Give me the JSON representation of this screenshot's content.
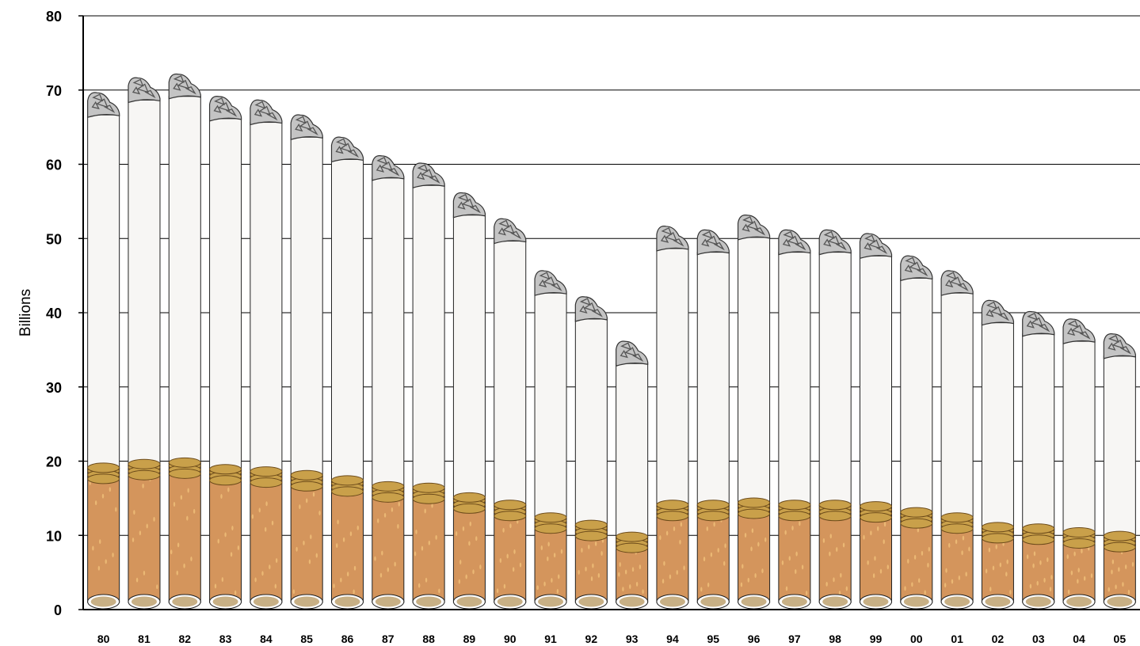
{
  "chart_data": {
    "type": "bar",
    "title": "",
    "xlabel": "",
    "ylabel": "Billions",
    "ylim": [
      0,
      80
    ],
    "yticks": [
      0,
      10,
      20,
      30,
      40,
      50,
      60,
      70,
      80
    ],
    "grid": true,
    "categories": [
      "80",
      "81",
      "82",
      "83",
      "84",
      "85",
      "86",
      "87",
      "88",
      "89",
      "90",
      "91",
      "92",
      "93",
      "94",
      "95",
      "96",
      "97",
      "98",
      "99",
      "00",
      "01",
      "02",
      "03",
      "04",
      "05"
    ],
    "values": [
      67.5,
      69.5,
      70.0,
      67.0,
      66.5,
      64.5,
      61.5,
      59.0,
      58.0,
      54.0,
      50.5,
      43.5,
      40.0,
      34.0,
      49.5,
      49.0,
      51.0,
      49.0,
      49.0,
      48.5,
      45.5,
      43.5,
      39.5,
      38.0,
      37.0,
      35.0
    ],
    "filter_values": [
      19.0,
      19.5,
      19.7,
      18.8,
      18.5,
      18.0,
      17.3,
      16.5,
      16.3,
      15.0,
      14.0,
      12.3,
      11.3,
      9.7,
      14.0,
      14.0,
      14.3,
      14.0,
      14.0,
      13.8,
      13.0,
      12.3,
      11.0,
      10.8,
      10.3,
      9.8
    ],
    "colors": {
      "paper": "#f7f6f4",
      "filter": "#d4955c",
      "filter_band": "#c9a04a",
      "filter_end": "#c8b085",
      "ash": "#c4c4c4",
      "grid": "#000000"
    },
    "icons": [
      "cigarette-bar",
      "ash-tip-icon"
    ]
  }
}
